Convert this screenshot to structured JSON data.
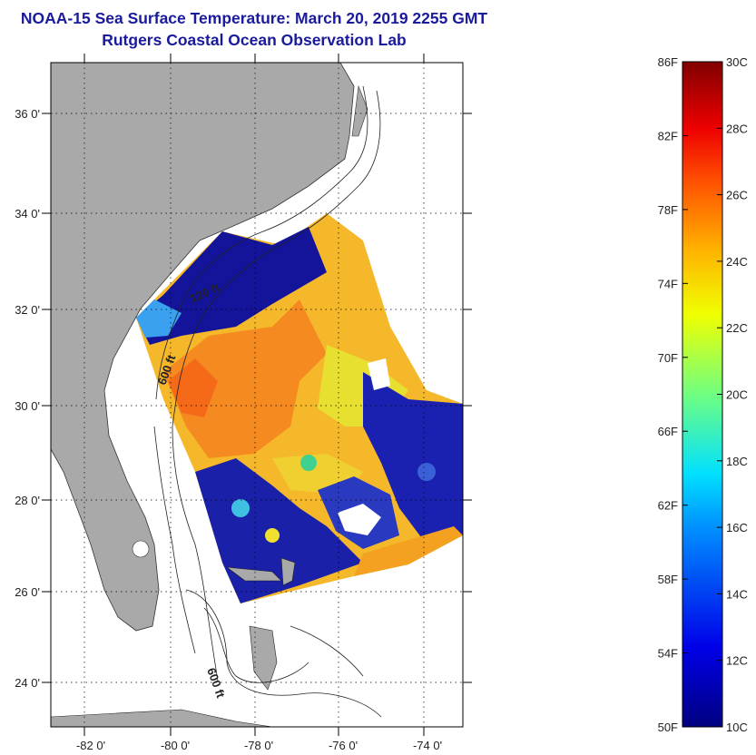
{
  "title": "NOAA-15 Sea Surface Temperature:  March 20, 2019 2255 GMT",
  "subtitle": "Rutgers Coastal Ocean Observation Lab",
  "map": {
    "lat_labels": [
      "36 0'",
      "34 0'",
      "32 0'",
      "30 0'",
      "28 0'",
      "26 0'",
      "24 0'"
    ],
    "lon_labels": [
      "-82 0'",
      "-80 0'",
      "-78 0'",
      "-76 0'",
      "-74 0'"
    ],
    "contour_labels": [
      "120 ft",
      "600 ft",
      "600 ft"
    ],
    "colors": {
      "land": "#a9a9a9",
      "water_cold": "#14149a",
      "water_warm": "#f4b82a",
      "water_hot": "#f56a18"
    }
  },
  "colorbar": {
    "fahrenheit_labels": [
      "86F",
      "82F",
      "78F",
      "74F",
      "70F",
      "66F",
      "62F",
      "58F",
      "54F",
      "50F"
    ],
    "celsius_labels": [
      "30C",
      "28C",
      "26C",
      "24C",
      "22C",
      "20C",
      "18C",
      "16C",
      "14C",
      "12C",
      "10C"
    ],
    "min_f": 50,
    "max_f": 86,
    "min_c": 10,
    "max_c": 30
  }
}
